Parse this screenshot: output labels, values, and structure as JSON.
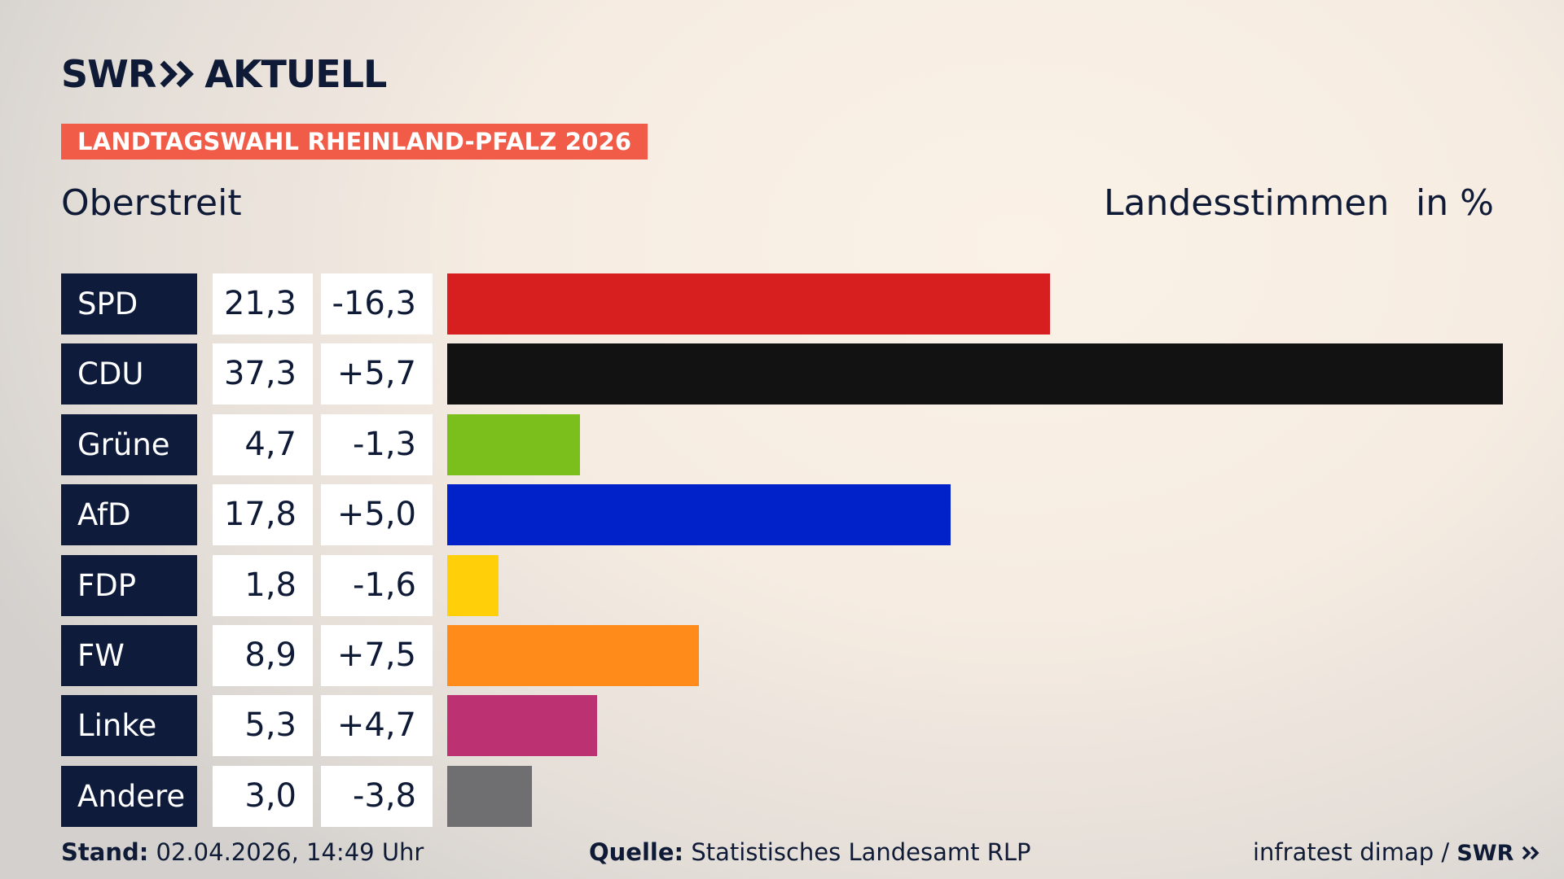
{
  "brand": {
    "logo_left": "SWR",
    "logo_right": "AKTUELL"
  },
  "banner": "LANDTAGSWAHL RHEINLAND-PFALZ 2026",
  "place": "Oberstreit",
  "header": {
    "measure": "Landesstimmen",
    "unit": "in %"
  },
  "footer": {
    "stand_label": "Stand:",
    "stand_value": "02.04.2026, 14:49 Uhr",
    "quelle_label": "Quelle:",
    "quelle_value": "Statistisches Landesamt RLP",
    "credit": "infratest dimap /",
    "credit_logo": "SWR"
  },
  "colors": {
    "navy": "#0e1b3b",
    "banner": "#f15c48"
  },
  "chart_data": {
    "type": "bar",
    "orientation": "horizontal",
    "title": "Landesstimmen",
    "unit": "in %",
    "xlim": [
      0,
      37.3
    ],
    "grid": false,
    "legend": "none",
    "categories": [
      "SPD",
      "CDU",
      "Grüne",
      "AfD",
      "FDP",
      "FW",
      "Linke",
      "Andere"
    ],
    "values": [
      21.3,
      37.3,
      4.7,
      17.8,
      1.8,
      8.9,
      5.3,
      3.0
    ],
    "value_labels": [
      "21,3",
      "37,3",
      "4,7",
      "17,8",
      "1,8",
      "8,9",
      "5,3",
      "3,0"
    ],
    "change_labels": [
      "-16,3",
      "+5,7",
      "-1,3",
      "+5,0",
      "-1,6",
      "+7,5",
      "+4,7",
      "-3,8"
    ],
    "changes": [
      -16.3,
      5.7,
      -1.3,
      5.0,
      -1.6,
      7.5,
      4.7,
      -3.8
    ],
    "bar_colors": [
      "#d81f1f",
      "#121212",
      "#7abf1c",
      "#0022c8",
      "#ffd00a",
      "#ff8c1a",
      "#bb3172",
      "#6f6f71"
    ]
  }
}
